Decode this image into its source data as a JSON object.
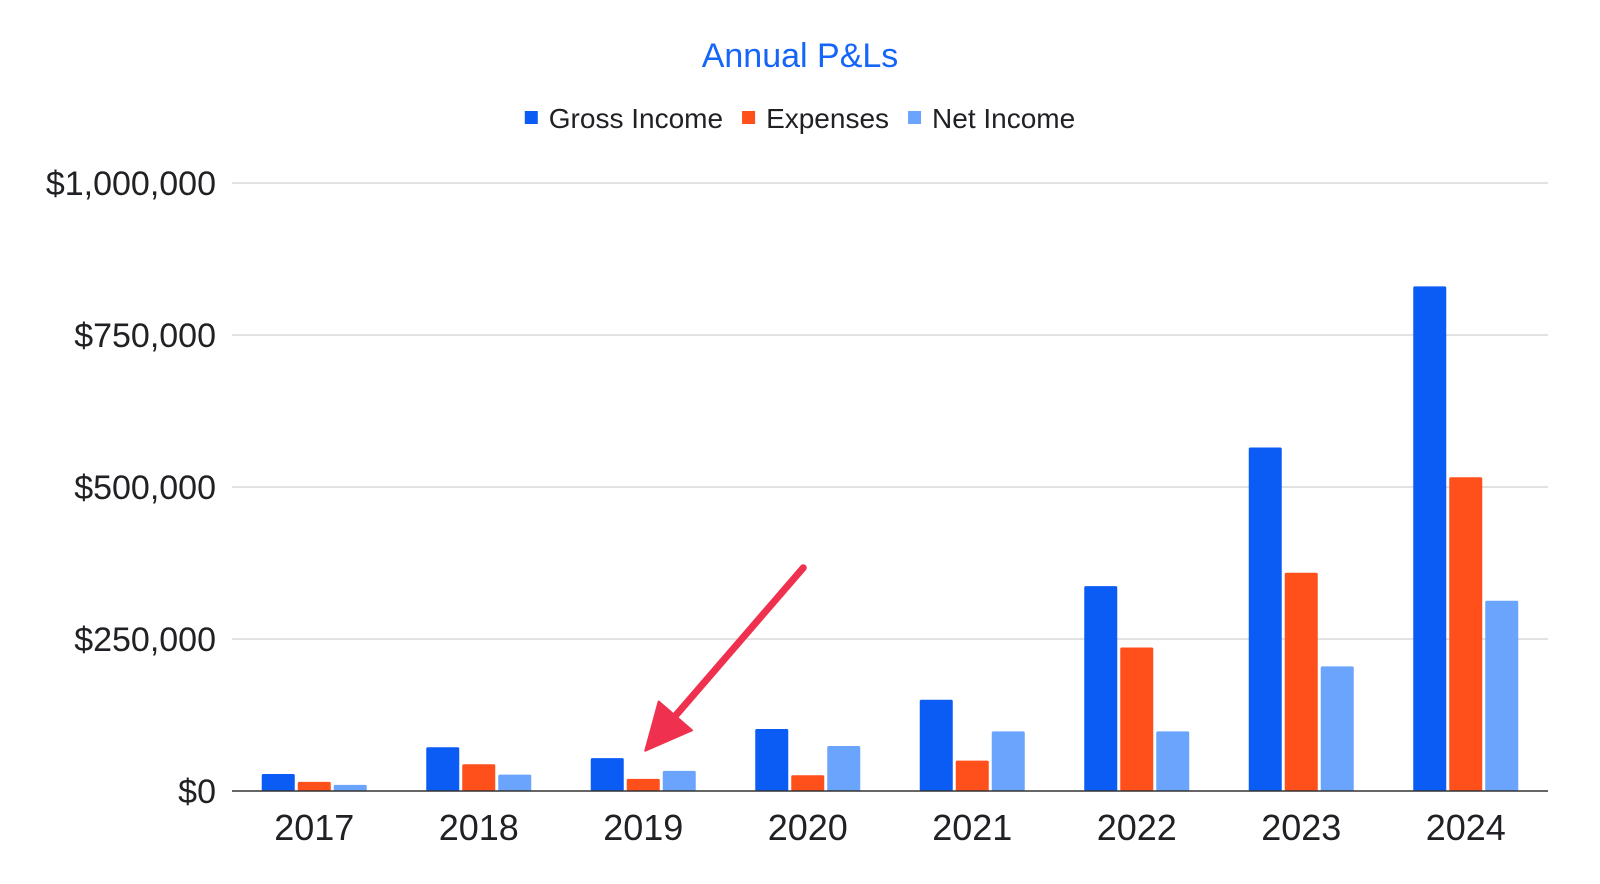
{
  "colors": {
    "title": "#1565f9",
    "gridline": "#d0d0d0",
    "axis": "#333333",
    "arrow": "#f0304f"
  },
  "chart_data": {
    "type": "bar",
    "title": "Annual P&Ls",
    "xlabel": "",
    "ylabel": "",
    "legend_position": "top",
    "grid": true,
    "ylim": [
      0,
      1000000
    ],
    "yticks": [
      0,
      250000,
      500000,
      750000,
      1000000
    ],
    "ytick_labels": [
      "$0",
      "$250,000",
      "$500,000",
      "$750,000",
      "$1,000,000"
    ],
    "categories": [
      "2017",
      "2018",
      "2019",
      "2020",
      "2021",
      "2022",
      "2023",
      "2024"
    ],
    "series": [
      {
        "name": "Gross Income",
        "color": "#0a5cf5",
        "values": [
          28000,
          72000,
          54000,
          102000,
          150000,
          337000,
          565000,
          830000
        ]
      },
      {
        "name": "Expenses",
        "color": "#ff4f1a",
        "values": [
          15000,
          44000,
          20000,
          26000,
          50000,
          236000,
          359000,
          516000
        ]
      },
      {
        "name": "Net Income",
        "color": "#6aa4fc",
        "values": [
          10000,
          27000,
          33000,
          74000,
          98000,
          98000,
          205000,
          313000
        ]
      }
    ],
    "annotations": [
      {
        "type": "arrow",
        "points_to": "2019",
        "color": "#f0304f"
      }
    ]
  }
}
